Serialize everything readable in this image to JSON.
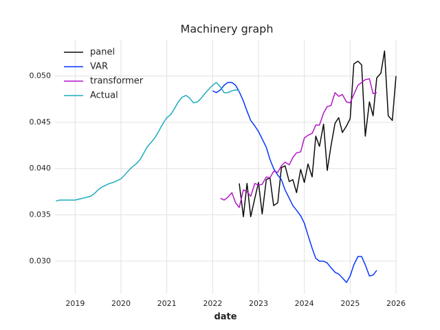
{
  "chart_data": {
    "type": "line",
    "title": "Machinery graph",
    "x_label": "date",
    "xlim": [
      2018.56,
      2026
    ],
    "xticks": [
      2019,
      2020,
      2021,
      2022,
      2023,
      2024,
      2025,
      2026
    ],
    "ylim": [
      0.0265,
      0.0539
    ],
    "yticks": [
      {
        "value": 0.03,
        "label": "0.030"
      },
      {
        "value": 0.035,
        "label": "0.035"
      },
      {
        "value": 0.04,
        "label": "0.040"
      },
      {
        "value": 0.045,
        "label": "0.045"
      },
      {
        "value": 0.05,
        "label": "0.050"
      }
    ],
    "grid": true,
    "legend": "upper left",
    "series": [
      {
        "name": "panel",
        "color": "#0a0a0a",
        "x": [
          2022.58,
          2022.67,
          2022.75,
          2022.83,
          2022.92,
          2023.0,
          2023.08,
          2023.17,
          2023.25,
          2023.33,
          2023.42,
          2023.5,
          2023.58,
          2023.67,
          2023.75,
          2023.83,
          2023.92,
          2024.0,
          2024.08,
          2024.17,
          2024.25,
          2024.33,
          2024.42,
          2024.5,
          2024.58,
          2024.67,
          2024.75,
          2024.83,
          2024.92,
          2025.0,
          2025.08,
          2025.17,
          2025.25,
          2025.33,
          2025.42,
          2025.5,
          2025.58,
          2025.67,
          2025.75,
          2025.83,
          2025.92,
          2026.0
        ],
        "values": [
          0.0384,
          0.0348,
          0.0384,
          0.0348,
          0.0368,
          0.0385,
          0.0351,
          0.0388,
          0.039,
          0.036,
          0.0363,
          0.0401,
          0.0403,
          0.0386,
          0.0388,
          0.0374,
          0.0399,
          0.0385,
          0.0405,
          0.0391,
          0.0435,
          0.0424,
          0.0448,
          0.0398,
          0.0424,
          0.0449,
          0.0455,
          0.0439,
          0.0446,
          0.0454,
          0.0513,
          0.0516,
          0.0512,
          0.0435,
          0.0472,
          0.0457,
          0.0498,
          0.0503,
          0.0527,
          0.0457,
          0.0452,
          0.05
        ]
      },
      {
        "name": "VAR",
        "color": "#0433ff",
        "x": [
          2022.0,
          2022.08,
          2022.17,
          2022.25,
          2022.33,
          2022.42,
          2022.5,
          2022.58,
          2022.67,
          2022.75,
          2022.83,
          2022.92,
          2023.0,
          2023.08,
          2023.17,
          2023.25,
          2023.33,
          2023.42,
          2023.5,
          2023.58,
          2023.67,
          2023.75,
          2023.83,
          2023.92,
          2024.0,
          2024.08,
          2024.17,
          2024.25,
          2024.33,
          2024.42,
          2024.5,
          2024.58,
          2024.67,
          2024.75,
          2024.83,
          2024.92,
          2025.0,
          2025.08,
          2025.17,
          2025.25,
          2025.33,
          2025.42,
          2025.5,
          2025.58
        ],
        "values": [
          0.0484,
          0.0482,
          0.0485,
          0.049,
          0.0493,
          0.0493,
          0.049,
          0.0483,
          0.0473,
          0.0462,
          0.0452,
          0.0446,
          0.044,
          0.0432,
          0.0423,
          0.041,
          0.04,
          0.0393,
          0.0388,
          0.0377,
          0.0368,
          0.036,
          0.0355,
          0.0349,
          0.0341,
          0.0328,
          0.0314,
          0.0303,
          0.03,
          0.03,
          0.0298,
          0.0293,
          0.0288,
          0.0286,
          0.0282,
          0.0277,
          0.0284,
          0.0296,
          0.0305,
          0.0305,
          0.0296,
          0.0284,
          0.0285,
          0.029
        ]
      },
      {
        "name": "transformer",
        "color": "#b414c8",
        "x": [
          2022.17,
          2022.25,
          2022.33,
          2022.42,
          2022.5,
          2022.58,
          2022.67,
          2022.75,
          2022.83,
          2022.92,
          2023.0,
          2023.08,
          2023.17,
          2023.25,
          2023.33,
          2023.42,
          2023.5,
          2023.58,
          2023.67,
          2023.75,
          2023.83,
          2023.92,
          2024.0,
          2024.08,
          2024.17,
          2024.25,
          2024.33,
          2024.42,
          2024.5,
          2024.58,
          2024.67,
          2024.75,
          2024.83,
          2024.92,
          2025.0,
          2025.08,
          2025.17,
          2025.25,
          2025.33,
          2025.42,
          2025.5,
          2025.58
        ],
        "values": [
          0.0368,
          0.0366,
          0.0369,
          0.0374,
          0.0363,
          0.0358,
          0.0377,
          0.0375,
          0.037,
          0.0384,
          0.0382,
          0.0383,
          0.0391,
          0.039,
          0.0397,
          0.0396,
          0.0403,
          0.0407,
          0.0404,
          0.0412,
          0.0417,
          0.0418,
          0.0433,
          0.0436,
          0.0438,
          0.0447,
          0.0447,
          0.046,
          0.0467,
          0.0468,
          0.0482,
          0.0478,
          0.048,
          0.0472,
          0.0471,
          0.048,
          0.049,
          0.0493,
          0.0496,
          0.0497,
          0.0481,
          0.0482
        ]
      },
      {
        "name": "Actual",
        "color": "#1cabbc",
        "x": [
          2018.58,
          2018.67,
          2018.75,
          2018.83,
          2018.92,
          2019.0,
          2019.08,
          2019.17,
          2019.25,
          2019.33,
          2019.42,
          2019.5,
          2019.58,
          2019.67,
          2019.75,
          2019.83,
          2019.92,
          2020.0,
          2020.08,
          2020.17,
          2020.25,
          2020.33,
          2020.42,
          2020.5,
          2020.58,
          2020.67,
          2020.75,
          2020.83,
          2020.92,
          2021.0,
          2021.08,
          2021.17,
          2021.25,
          2021.33,
          2021.42,
          2021.5,
          2021.58,
          2021.67,
          2021.75,
          2021.83,
          2021.92,
          2022.0,
          2022.08,
          2022.17,
          2022.25,
          2022.33,
          2022.42,
          2022.5,
          2022.58
        ],
        "values": [
          0.0365,
          0.0366,
          0.0366,
          0.0366,
          0.0366,
          0.0366,
          0.0367,
          0.0368,
          0.0369,
          0.037,
          0.0373,
          0.0377,
          0.038,
          0.0382,
          0.0384,
          0.0385,
          0.0387,
          0.0389,
          0.0393,
          0.0398,
          0.0402,
          0.0405,
          0.041,
          0.0417,
          0.0424,
          0.0429,
          0.0434,
          0.0441,
          0.0449,
          0.0455,
          0.0458,
          0.0465,
          0.0472,
          0.0477,
          0.0479,
          0.0476,
          0.0471,
          0.0472,
          0.0476,
          0.0481,
          0.0486,
          0.049,
          0.0493,
          0.0488,
          0.0482,
          0.0482,
          0.0484,
          0.0485,
          0.0484
        ]
      }
    ]
  }
}
